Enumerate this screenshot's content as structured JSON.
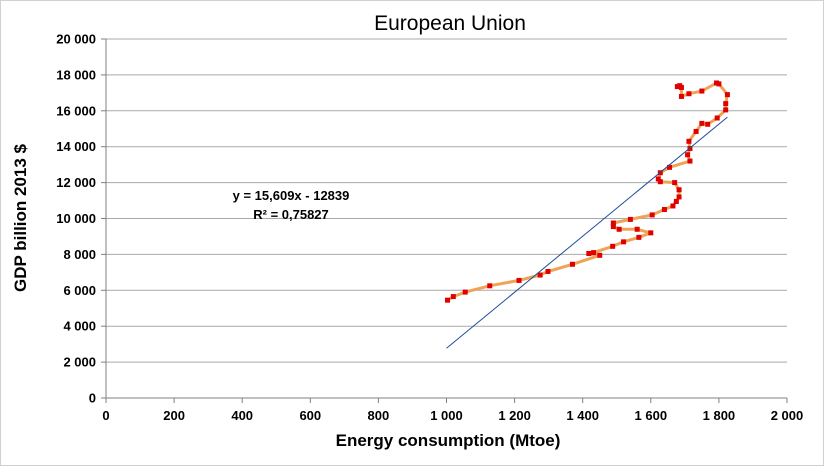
{
  "chart_data": {
    "type": "scatter",
    "title": "European Union",
    "xlabel": "Energy consumption (Mtoe)",
    "ylabel": "GDP billion 2013 $",
    "xlim": [
      0,
      2000
    ],
    "ylim": [
      0,
      20000
    ],
    "x_ticks": [
      "0",
      "200",
      "400",
      "600",
      "800",
      "1 000",
      "1 200",
      "1 400",
      "1 600",
      "1 800",
      "2 000"
    ],
    "y_ticks": [
      "0",
      "2 000",
      "4 000",
      "6 000",
      "8 000",
      "10 000",
      "12 000",
      "14 000",
      "16 000",
      "18 000",
      "20 000"
    ],
    "grid": "horizontal",
    "colors": {
      "line": "#f0a257",
      "marker": "#e00000",
      "trendline": "#1f4e9b",
      "grid": "#a9a9a9"
    },
    "series": [
      {
        "points": [
          [
            1003,
            5450
          ],
          [
            1020,
            5650
          ],
          [
            1055,
            5900
          ],
          [
            1127,
            6250
          ],
          [
            1213,
            6550
          ],
          [
            1275,
            6850
          ],
          [
            1298,
            7050
          ],
          [
            1370,
            7450
          ],
          [
            1450,
            7950
          ],
          [
            1418,
            8050
          ],
          [
            1432,
            8100
          ],
          [
            1488,
            8450
          ],
          [
            1520,
            8700
          ],
          [
            1565,
            8950
          ],
          [
            1600,
            9200
          ],
          [
            1560,
            9400
          ],
          [
            1507,
            9400
          ],
          [
            1490,
            9550
          ],
          [
            1490,
            9750
          ],
          [
            1540,
            9950
          ],
          [
            1604,
            10200
          ],
          [
            1640,
            10500
          ],
          [
            1665,
            10700
          ],
          [
            1675,
            10950
          ],
          [
            1683,
            11200
          ],
          [
            1683,
            11600
          ],
          [
            1670,
            12000
          ],
          [
            1628,
            12050
          ],
          [
            1622,
            12200
          ],
          [
            1628,
            12550
          ],
          [
            1655,
            12850
          ],
          [
            1715,
            13200
          ],
          [
            1708,
            13550
          ],
          [
            1715,
            13900
          ],
          [
            1712,
            14300
          ],
          [
            1733,
            14850
          ],
          [
            1750,
            15300
          ],
          [
            1767,
            15250
          ],
          [
            1795,
            15600
          ],
          [
            1820,
            16050
          ],
          [
            1820,
            16400
          ],
          [
            1825,
            16900
          ],
          [
            1800,
            17500
          ],
          [
            1793,
            17550
          ],
          [
            1750,
            17100
          ],
          [
            1712,
            16950
          ],
          [
            1690,
            16800
          ],
          [
            1690,
            17300
          ],
          [
            1678,
            17350
          ],
          [
            1685,
            17400
          ]
        ]
      }
    ],
    "trendline": {
      "equation": "y = 15,609x - 12839",
      "r_squared": "R² = 0,75827",
      "slope": 15.609,
      "intercept": -12839,
      "x_range": [
        1000,
        1825
      ]
    }
  }
}
